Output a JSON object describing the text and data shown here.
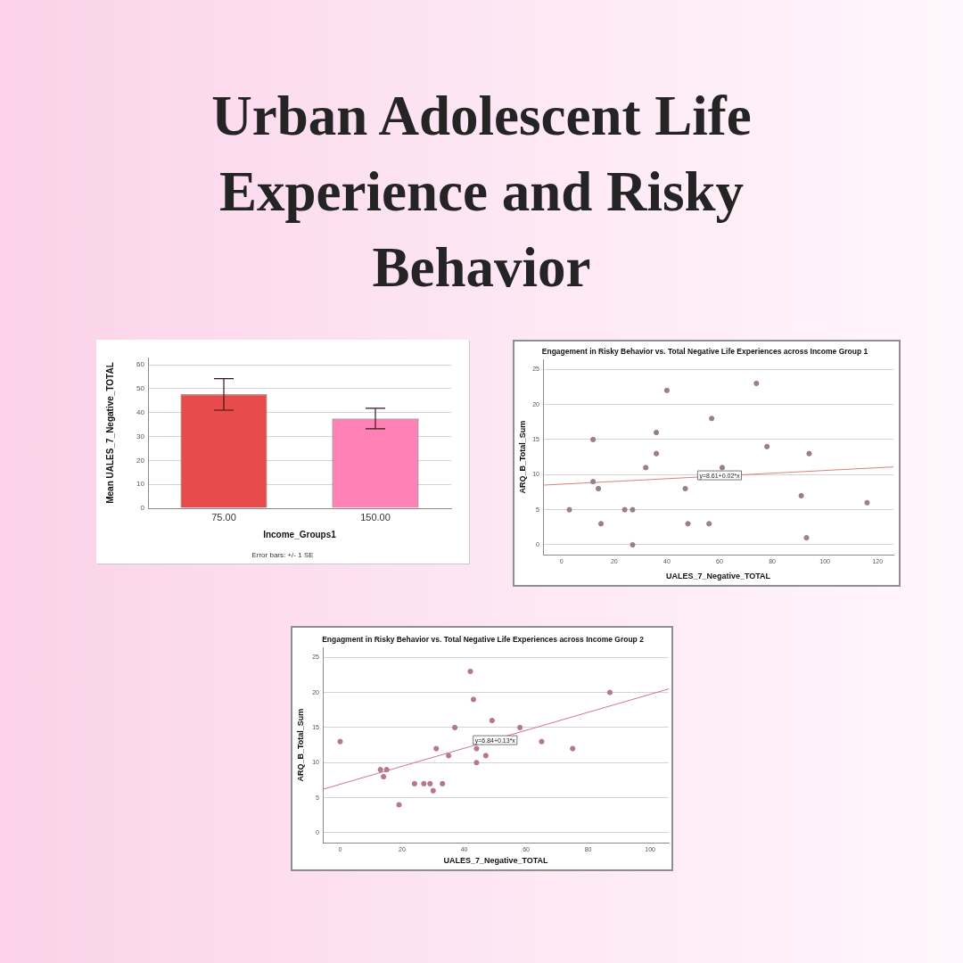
{
  "chart_data": [
    {
      "type": "other",
      "title": "Urban Adolescent Life Experience and Risky Behavior"
    },
    {
      "type": "bar",
      "categories": [
        "75.00",
        "150.00"
      ],
      "values": [
        47.6,
        37.5
      ],
      "errors": [
        6.6,
        4.3
      ],
      "colors": [
        "#e84b4b",
        "#ff82b6"
      ],
      "xlabel": "Income_Groups1",
      "ylabel": "Mean UALES_7_Negative_TOTAL",
      "ylim": [
        0,
        63
      ],
      "yticks": [
        0,
        10,
        20,
        30,
        40,
        50,
        60
      ],
      "grid": "y",
      "annotations": [
        "Error bars: +/- 1 SE"
      ]
    },
    {
      "type": "scatter",
      "title": "Engagement in Risky Behavior vs. Total Negative Life Experiences across Income Group 1",
      "xlabel": "UALES_7_Negative_TOTAL",
      "ylabel": "ARQ_B_Total_Sum",
      "xlim": [
        -7,
        126
      ],
      "ylim": [
        -1.4,
        26.4
      ],
      "xticks": [
        0,
        20,
        40,
        60,
        80,
        100,
        120
      ],
      "yticks": [
        0,
        5,
        10,
        15,
        20,
        25
      ],
      "grid": "y",
      "marker": "circle",
      "series": [
        {
          "type": "scatter",
          "color": "#9c7f89",
          "x": [
            3,
            12,
            12,
            14,
            15,
            24,
            27,
            27,
            32,
            36,
            36,
            40,
            47,
            48,
            56,
            57,
            61,
            74,
            78,
            91,
            93,
            94,
            116
          ],
          "values": [
            5,
            15,
            9,
            8,
            3,
            5,
            5,
            0,
            11,
            16,
            13,
            22,
            8,
            3,
            3,
            18,
            11,
            23,
            14,
            7,
            1,
            13,
            6
          ]
        },
        {
          "type": "line",
          "color": "#d98080",
          "marker": "none",
          "x": [
            -7,
            126
          ],
          "values": [
            8.5,
            11.1
          ]
        }
      ],
      "annotations": [
        {
          "text": "y=8.61+0.02*x",
          "x": 60,
          "y": 9.9
        }
      ]
    },
    {
      "type": "scatter",
      "title": "Engagment in Risky Behavior vs. Total Negative Life Experiences across Income Group 2",
      "xlabel": "UALES_7_Negative_TOTAL",
      "ylabel": "ARQ_B_Total_Sum",
      "xlim": [
        -5.6,
        106
      ],
      "ylim": [
        -1.4,
        26.4
      ],
      "xticks": [
        0,
        20,
        40,
        60,
        80,
        100
      ],
      "yticks": [
        0,
        5,
        10,
        15,
        20,
        25
      ],
      "grid": "y",
      "marker": "circle",
      "series": [
        {
          "type": "scatter",
          "color": "#b57889",
          "x": [
            0,
            13,
            14,
            15,
            19,
            24,
            27,
            29,
            30,
            31,
            33,
            35,
            37,
            42,
            43,
            44,
            44,
            47,
            49,
            58,
            65,
            75,
            87
          ],
          "values": [
            13,
            9,
            8,
            9,
            4,
            7,
            7,
            7,
            6,
            12,
            7,
            11,
            15,
            23,
            19,
            12,
            10,
            11,
            16,
            15,
            13,
            12,
            20
          ]
        },
        {
          "type": "line",
          "color": "#d47586",
          "marker": "none",
          "x": [
            -5.6,
            106
          ],
          "values": [
            6.2,
            20.5
          ]
        }
      ],
      "annotations": [
        {
          "text": "y=6.84+0.13*x",
          "x": 50,
          "y": 13.2
        }
      ]
    }
  ]
}
